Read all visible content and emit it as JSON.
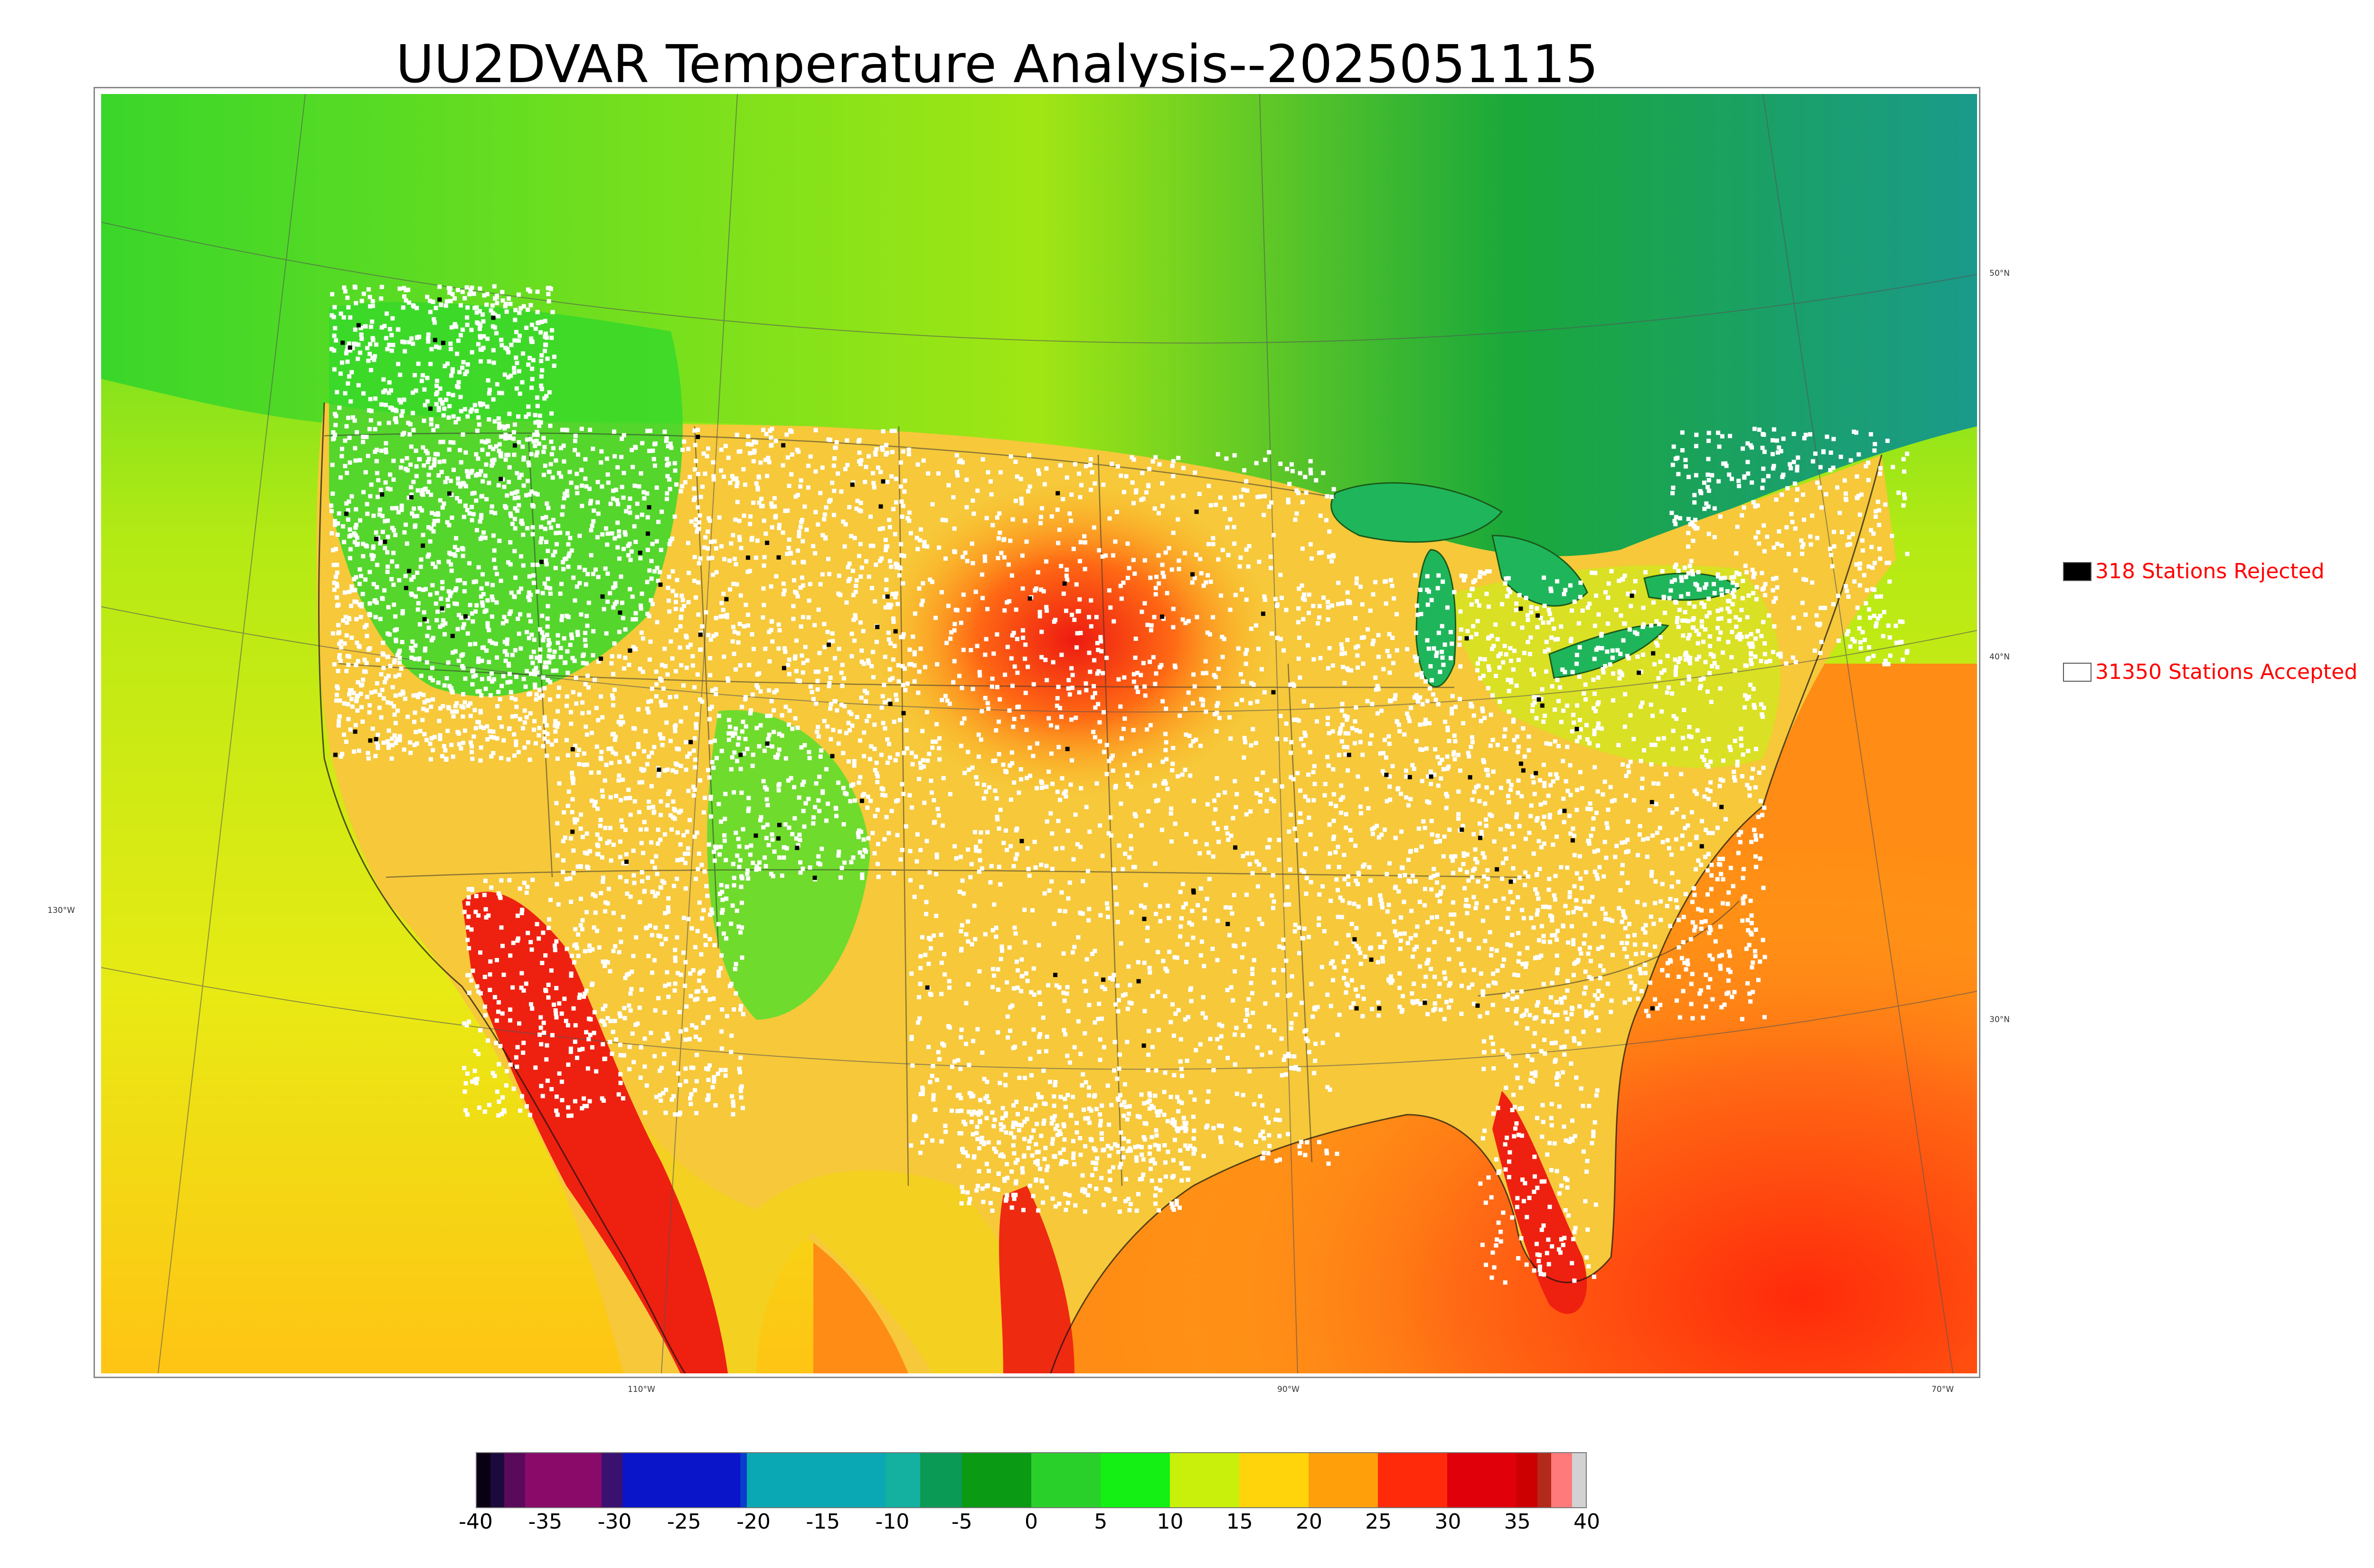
{
  "title": "UU2DVAR Temperature Analysis--2025051115",
  "legend": {
    "rejected": {
      "label": "318 Stations Rejected",
      "swatch_color": "#000000"
    },
    "accepted": {
      "label": "31350 Stations Accepted",
      "swatch_color": "#ffffff"
    }
  },
  "map": {
    "longitude_labels": [
      "130°W",
      "110°W",
      "90°W",
      "70°W"
    ],
    "latitude_labels": [
      "50°N",
      "40°N",
      "30°N"
    ],
    "colors": {
      "ocean_warm": "#ff7a1a",
      "land_warm": "#f4c43a",
      "hot": "#ee2a10",
      "cool_green": "#37d82a",
      "cold_north": "#1aa83a",
      "lake": "#1fb65b",
      "station_accepted": "#ffffff",
      "station_rejected": "#000000"
    }
  },
  "colorbar": {
    "tick_labels": [
      "-40",
      "-35",
      "-30",
      "-25",
      "-20",
      "-15",
      "-10",
      "-5",
      "0",
      "5",
      "10",
      "15",
      "20",
      "25",
      "30",
      "35",
      "40"
    ],
    "range": [
      -40,
      40
    ],
    "segments": [
      {
        "from": -40,
        "to": -39,
        "color": "#0a0014"
      },
      {
        "from": -39,
        "to": -38,
        "color": "#1c0a3c"
      },
      {
        "from": -38,
        "to": -36.5,
        "color": "#5a0a5a"
      },
      {
        "from": -36.5,
        "to": -31,
        "color": "#8a0a6a"
      },
      {
        "from": -31,
        "to": -29.5,
        "color": "#3a1070"
      },
      {
        "from": -29.5,
        "to": -21,
        "color": "#0a14c8"
      },
      {
        "from": -21,
        "to": -20.5,
        "color": "#0a3ccc"
      },
      {
        "from": -20.5,
        "to": -10.5,
        "color": "#0aa8b4"
      },
      {
        "from": -10.5,
        "to": -8,
        "color": "#14b0a0"
      },
      {
        "from": -8,
        "to": -5,
        "color": "#0a9a55"
      },
      {
        "from": -5,
        "to": 0,
        "color": "#0a9a14"
      },
      {
        "from": 0,
        "to": 5,
        "color": "#2ad02a"
      },
      {
        "from": 5,
        "to": 10,
        "color": "#14f014"
      },
      {
        "from": 10,
        "to": 15,
        "color": "#c8f00a"
      },
      {
        "from": 15,
        "to": 20,
        "color": "#ffd40a"
      },
      {
        "from": 20,
        "to": 25,
        "color": "#ffa00a"
      },
      {
        "from": 25,
        "to": 30,
        "color": "#ff2a0a"
      },
      {
        "from": 30,
        "to": 35,
        "color": "#e0000a"
      },
      {
        "from": 35,
        "to": 36.5,
        "color": "#cc0000"
      },
      {
        "from": 36.5,
        "to": 37.5,
        "color": "#b42a1a"
      },
      {
        "from": 37.5,
        "to": 39,
        "color": "#ff7a7a"
      },
      {
        "from": 39,
        "to": 40,
        "color": "#d2d2d2"
      }
    ]
  }
}
